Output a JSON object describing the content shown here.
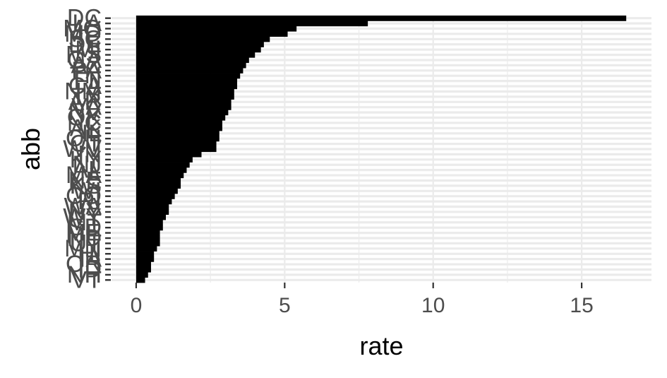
{
  "chart_data": {
    "type": "bar",
    "orientation": "horizontal",
    "xlabel": "rate",
    "ylabel": "abb",
    "xlim": [
      -0.83,
      17.35
    ],
    "x_ticks": [
      0,
      5,
      10,
      15
    ],
    "grid": true,
    "colors": {
      "bar": "#000000",
      "grid": "#ebebeb",
      "tick_text": "#4d4d4d",
      "title_text": "#000000"
    },
    "categories": [
      "DC",
      "LA",
      "MO",
      "MD",
      "SC",
      "DE",
      "MI",
      "MS",
      "GA",
      "AZ",
      "PA",
      "TN",
      "FL",
      "CA",
      "NM",
      "TX",
      "AR",
      "VA",
      "NV",
      "OK",
      "NC",
      "AK",
      "IL",
      "OH",
      "CT",
      "WV",
      "IN",
      "KY",
      "NJ",
      "AL",
      "MA",
      "NE",
      "KS",
      "WI",
      "CO",
      "RI",
      "WA",
      "NY",
      "WY",
      "MT",
      "SD",
      "ME",
      "ND",
      "UT",
      "MN",
      "HI",
      "IA",
      "OR",
      "ID",
      "NH",
      "VT"
    ],
    "values": [
      16.5,
      7.8,
      5.4,
      5.1,
      4.5,
      4.3,
      4.2,
      4.0,
      3.8,
      3.7,
      3.6,
      3.5,
      3.4,
      3.4,
      3.3,
      3.3,
      3.2,
      3.2,
      3.1,
      3.0,
      2.9,
      2.9,
      2.8,
      2.8,
      2.7,
      2.7,
      2.2,
      1.9,
      1.8,
      1.7,
      1.6,
      1.5,
      1.5,
      1.4,
      1.3,
      1.2,
      1.1,
      1.1,
      1.0,
      0.9,
      0.9,
      0.8,
      0.8,
      0.8,
      0.7,
      0.6,
      0.6,
      0.5,
      0.5,
      0.4,
      0.3
    ]
  }
}
